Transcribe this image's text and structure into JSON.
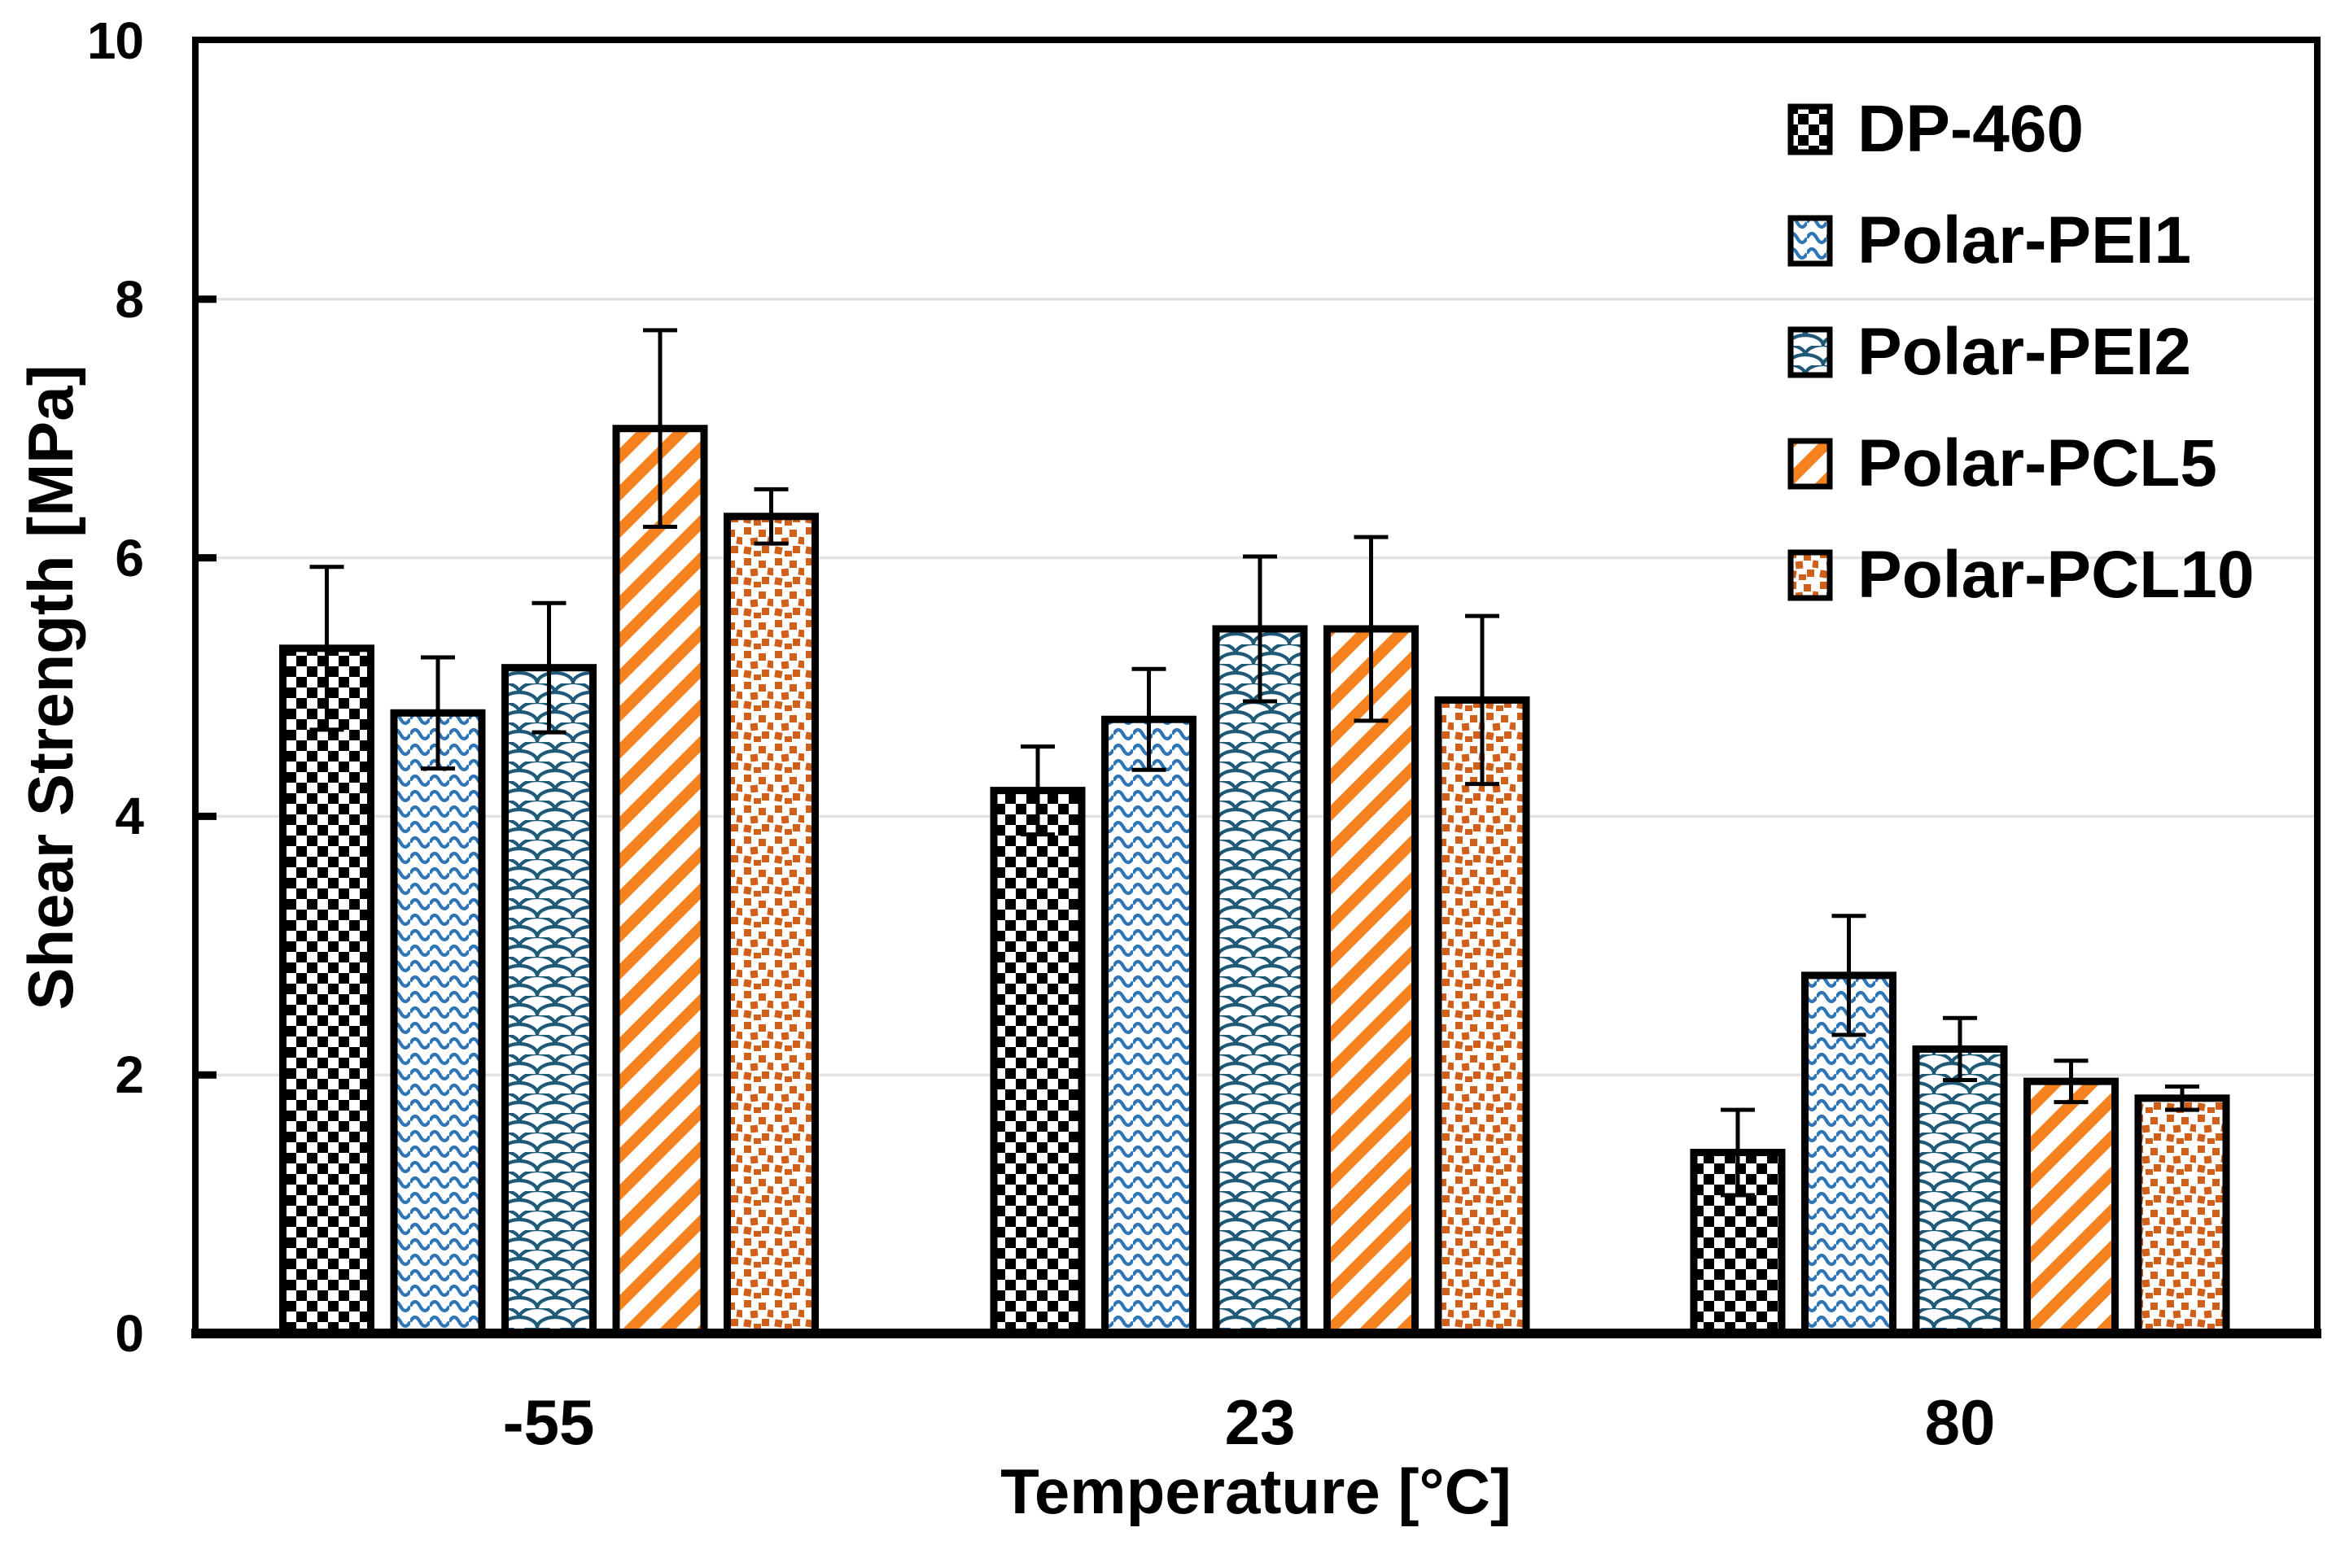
{
  "chart_data": {
    "type": "bar",
    "title": "",
    "xlabel": "Temperature [°C]",
    "ylabel": "Shear Strength [MPa]",
    "ylim": [
      0,
      10
    ],
    "y_ticks": [
      "0",
      "2",
      "4",
      "6",
      "8",
      "10"
    ],
    "gridlines_at": [
      2,
      4,
      6,
      8
    ],
    "grid": "horizontal-light-gray",
    "grid_color": "#E2E2E2",
    "axis_color": "#000000",
    "legend_position": "top-right-inside",
    "error_bars": "symmetric, black, capped",
    "categories": [
      "-55",
      "23",
      "80"
    ],
    "series": [
      {
        "name": "DP-460",
        "pattern": "checkerboard",
        "color": "#000000",
        "values": [
          5.3,
          4.2,
          1.4
        ],
        "errors": [
          0.63,
          0.34,
          0.33
        ]
      },
      {
        "name": "Polar-PEI1",
        "pattern": "horizontal-waves",
        "color": "#2E75B6",
        "values": [
          4.8,
          4.75,
          2.77
        ],
        "errors": [
          0.43,
          0.39,
          0.46
        ]
      },
      {
        "name": "Polar-PEI2",
        "pattern": "fish-scales",
        "color": "#1E5A78",
        "values": [
          5.15,
          5.45,
          2.2
        ],
        "errors": [
          0.5,
          0.56,
          0.24
        ]
      },
      {
        "name": "Polar-PCL5",
        "pattern": "diagonal-stripes",
        "color": "#F5821E",
        "values": [
          7.0,
          5.45,
          1.95
        ],
        "errors": [
          0.76,
          0.71,
          0.16
        ]
      },
      {
        "name": "Polar-PCL10",
        "pattern": "scattered-squares",
        "color": "#D05F19",
        "values": [
          6.32,
          4.9,
          1.82
        ],
        "errors": [
          0.21,
          0.65,
          0.09
        ]
      }
    ]
  }
}
